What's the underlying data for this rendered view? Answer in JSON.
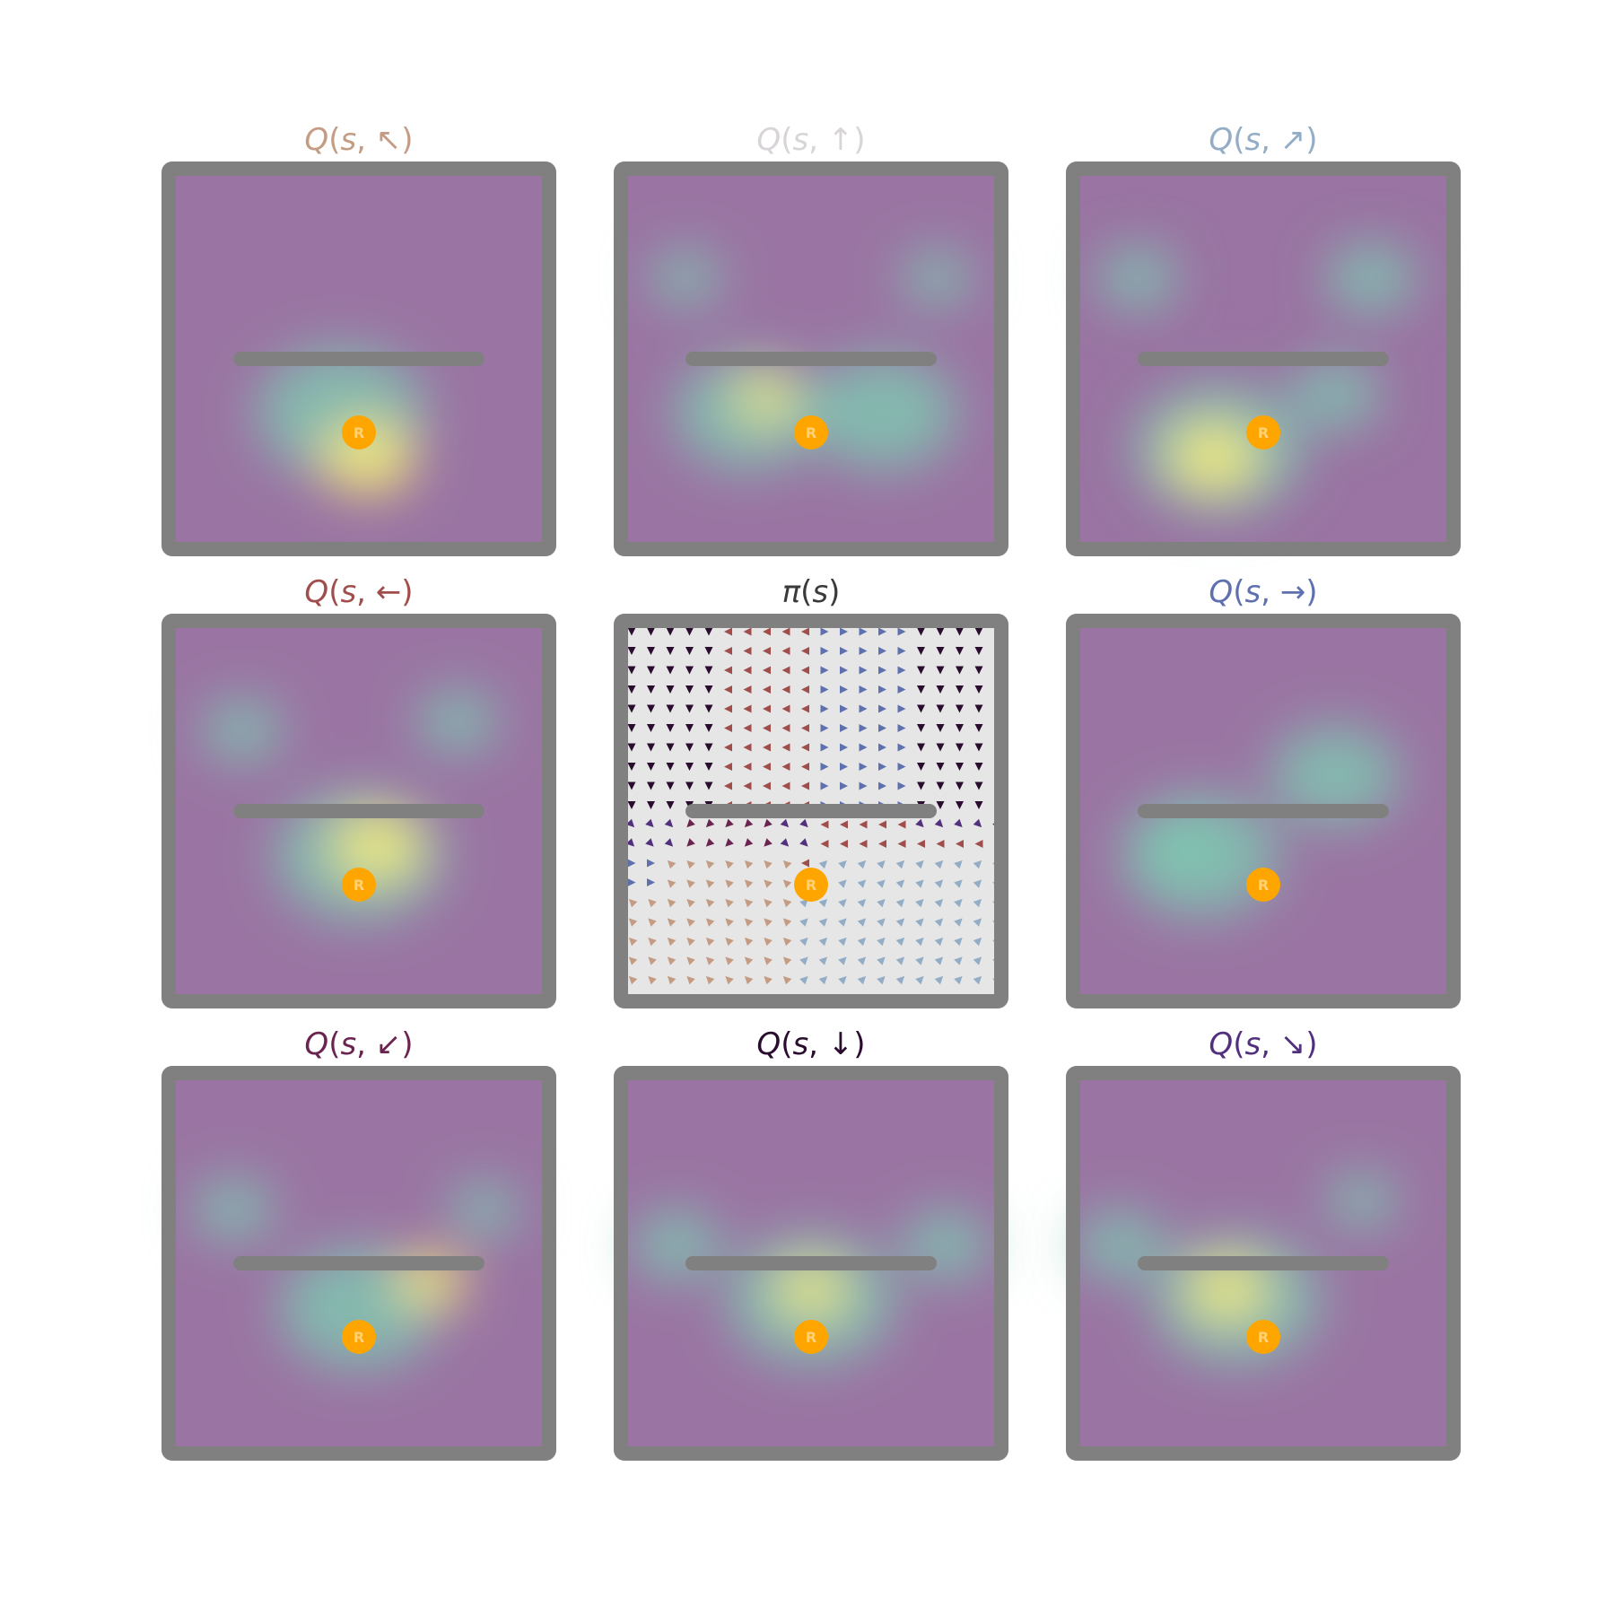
{
  "colors": {
    "frame": "#808080",
    "reward": "#FFA500",
    "reward_text": "#FFD27A",
    "policy_bg": "#E6E6E6",
    "heat_low": "#9A75A3",
    "heat_mid": "#7EC9B1",
    "heat_high": "#F4EB7A"
  },
  "reward_label": "R",
  "panels": [
    {
      "key": "nw",
      "title": {
        "q": "Q",
        "s": "s",
        "arrow": "↖"
      },
      "title_color": "#C49C83"
    },
    {
      "key": "n",
      "title": {
        "q": "Q",
        "s": "s",
        "arrow": "↑"
      },
      "title_color": "#D8D4D8"
    },
    {
      "key": "ne",
      "title": {
        "q": "Q",
        "s": "s",
        "arrow": "↗"
      },
      "title_color": "#93ADC6"
    },
    {
      "key": "w",
      "title": {
        "q": "Q",
        "s": "s",
        "arrow": "←"
      },
      "title_color": "#A04E4C"
    },
    {
      "key": "pi",
      "title": {
        "q": "π",
        "s": "s",
        "arrow": ""
      },
      "title_color": "#3A3A3A"
    },
    {
      "key": "e",
      "title": {
        "q": "Q",
        "s": "s",
        "arrow": "→"
      },
      "title_color": "#5E70AE"
    },
    {
      "key": "sw",
      "title": {
        "q": "Q",
        "s": "s",
        "arrow": "↙"
      },
      "title_color": "#6B2450"
    },
    {
      "key": "s",
      "title": {
        "q": "Q",
        "s": "s",
        "arrow": "↓"
      },
      "title_color": "#2A0C2E"
    },
    {
      "key": "se",
      "title": {
        "q": "Q",
        "s": "s",
        "arrow": "↘"
      },
      "title_color": "#53307E"
    }
  ],
  "action_colors": {
    "nw": "#C49C83",
    "n": "#D8D4D8",
    "ne": "#93ADC6",
    "w": "#A04E4C",
    "e": "#5E70AE",
    "sw": "#6B2450",
    "s": "#2A0C2E",
    "se": "#53307E"
  }
}
